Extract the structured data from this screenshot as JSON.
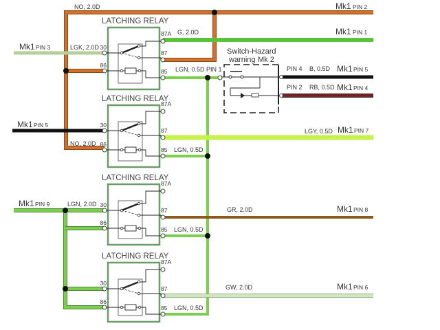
{
  "colors": {
    "orange": "#d2702a",
    "green": "#5cc23a",
    "lgn": "#7ccf4a",
    "lgk": "#b7cf9a",
    "black": "#111111",
    "red_brown": "#7a1f1f",
    "lgy": "#c6f04a",
    "gr": "#8a5a1e",
    "gw": "#cfe8c0",
    "relay_box": "#6a9a66"
  },
  "relay_title": "LATCHING RELAY",
  "terminals": {
    "t30": "30",
    "t86": "86",
    "t87a": "87A",
    "t87": "87",
    "t85": "85"
  },
  "wires": {
    "no_top": "NO, 2.0D",
    "g": "G, 2.0D",
    "lgk": "LGK, 2.0D",
    "lgn1": "LGN, 0.5D",
    "pin1": "PIN 1",
    "no_bottom": "NO, 2.0D",
    "lgn2": "LGN, 0.5D",
    "lgy": "LGY, 0.5D",
    "lgn9": "LGN, 2.0D",
    "gr": "GR, 2.0D",
    "lgn3": "LGN, 0.5D",
    "gw": "GW, 2.0D",
    "lgn4": "LGN, 0.5D",
    "pin4": "PIN 4",
    "b": "B, 0.5D",
    "pin2": "PIN 2",
    "rb": "RB, 0.5D"
  },
  "connectors": {
    "mk1": "Mk1",
    "pin2": "PIN 2",
    "pin1": "PIN 1",
    "pin3": "PIN 3",
    "pin5": "PIN 5",
    "pin4": "PIN 4",
    "pin7": "PIN 7",
    "pin9": "PIN 9",
    "pin8": "PIN 8",
    "pin6": "PIN 6"
  },
  "switch": {
    "line1": "Switch-Hazard",
    "line2": "warning",
    "mk": "Mk 2"
  }
}
